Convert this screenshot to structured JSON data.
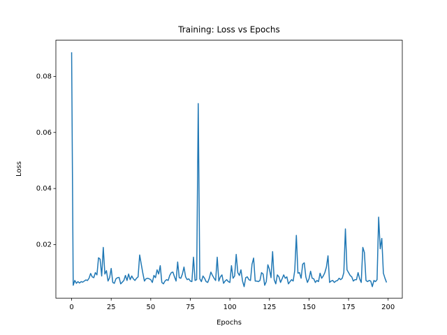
{
  "chart_data": {
    "type": "line",
    "title": "Training: Loss vs Epochs",
    "x_label": "Epochs",
    "y_label": "Loss",
    "x": [
      0,
      1,
      2,
      3,
      4,
      5,
      6,
      7,
      8,
      9,
      10,
      11,
      12,
      13,
      14,
      15,
      16,
      17,
      18,
      19,
      20,
      21,
      22,
      23,
      24,
      25,
      26,
      27,
      28,
      29,
      30,
      31,
      32,
      33,
      34,
      35,
      36,
      37,
      38,
      39,
      40,
      41,
      42,
      43,
      44,
      45,
      46,
      47,
      48,
      49,
      50,
      51,
      52,
      53,
      54,
      55,
      56,
      57,
      58,
      59,
      60,
      61,
      62,
      63,
      64,
      65,
      66,
      67,
      68,
      69,
      70,
      71,
      72,
      73,
      74,
      75,
      76,
      77,
      78,
      79,
      80,
      81,
      82,
      83,
      84,
      85,
      86,
      87,
      88,
      89,
      90,
      91,
      92,
      93,
      94,
      95,
      96,
      97,
      98,
      99,
      100,
      101,
      102,
      103,
      104,
      105,
      106,
      107,
      108,
      109,
      110,
      111,
      112,
      113,
      114,
      115,
      116,
      117,
      118,
      119,
      120,
      121,
      122,
      123,
      124,
      125,
      126,
      127,
      128,
      129,
      130,
      131,
      132,
      133,
      134,
      135,
      136,
      137,
      138,
      139,
      140,
      141,
      142,
      143,
      144,
      145,
      146,
      147,
      148,
      149,
      150,
      151,
      152,
      153,
      154,
      155,
      156,
      157,
      158,
      159,
      160,
      161,
      162,
      163,
      164,
      165,
      166,
      167,
      168,
      169,
      170,
      171,
      172,
      173,
      174,
      175,
      176,
      177,
      178,
      179,
      180,
      181,
      182,
      183,
      184,
      185,
      186,
      187,
      188,
      189,
      190,
      191,
      192,
      193,
      194,
      195,
      196,
      197,
      198,
      199
    ],
    "series": [
      {
        "name": "Loss",
        "color": "#1f77b4",
        "values": [
          0.0886,
          0.0055,
          0.0072,
          0.0062,
          0.0068,
          0.0063,
          0.0068,
          0.0066,
          0.007,
          0.0074,
          0.0072,
          0.008,
          0.0097,
          0.0085,
          0.0082,
          0.01,
          0.0092,
          0.0153,
          0.0148,
          0.0088,
          0.019,
          0.0095,
          0.0107,
          0.007,
          0.0082,
          0.0115,
          0.0065,
          0.0062,
          0.0078,
          0.0082,
          0.0083,
          0.006,
          0.0066,
          0.0072,
          0.009,
          0.0072,
          0.0095,
          0.0075,
          0.0088,
          0.0078,
          0.0072,
          0.008,
          0.0085,
          0.0163,
          0.013,
          0.0098,
          0.007,
          0.0078,
          0.008,
          0.0078,
          0.0075,
          0.0065,
          0.009,
          0.0082,
          0.011,
          0.0095,
          0.0125,
          0.0065,
          0.006,
          0.007,
          0.0075,
          0.0072,
          0.009,
          0.01,
          0.0102,
          0.0085,
          0.007,
          0.0138,
          0.0082,
          0.008,
          0.0095,
          0.012,
          0.0085,
          0.0075,
          0.0078,
          0.007,
          0.0068,
          0.0155,
          0.0072,
          0.0075,
          0.0703,
          0.0078,
          0.0068,
          0.0088,
          0.008,
          0.0068,
          0.0065,
          0.008,
          0.0102,
          0.009,
          0.008,
          0.0072,
          0.0155,
          0.007,
          0.0085,
          0.0092,
          0.0062,
          0.007,
          0.0075,
          0.0068,
          0.0065,
          0.0125,
          0.008,
          0.0088,
          0.0165,
          0.01,
          0.009,
          0.011,
          0.007,
          0.005,
          0.0082,
          0.0085,
          0.0075,
          0.0072,
          0.013,
          0.0152,
          0.007,
          0.007,
          0.0068,
          0.0072,
          0.01,
          0.0095,
          0.0055,
          0.0068,
          0.0128,
          0.0112,
          0.0082,
          0.0175,
          0.0075,
          0.006,
          0.0092,
          0.0085,
          0.0065,
          0.0078,
          0.0092,
          0.008,
          0.0085,
          0.006,
          0.0068,
          0.0075,
          0.007,
          0.0108,
          0.0233,
          0.0098,
          0.01,
          0.008,
          0.013,
          0.0135,
          0.0085,
          0.0065,
          0.0078,
          0.0105,
          0.008,
          0.0078,
          0.0065,
          0.0072,
          0.0068,
          0.0098,
          0.008,
          0.0088,
          0.01,
          0.012,
          0.016,
          0.0065,
          0.007,
          0.0072,
          0.0065,
          0.007,
          0.0072,
          0.008,
          0.0075,
          0.008,
          0.01,
          0.0256,
          0.011,
          0.01,
          0.009,
          0.0085,
          0.007,
          0.0075,
          0.0075,
          0.01,
          0.0078,
          0.0065,
          0.019,
          0.0172,
          0.0072,
          0.0068,
          0.0072,
          0.007,
          0.005,
          0.0072,
          0.0068,
          0.0075,
          0.0298,
          0.0185,
          0.0222,
          0.0098,
          0.008,
          0.0065
        ]
      }
    ],
    "xlim": [
      -9.95,
      208.95
    ],
    "xticks": [
      0,
      25,
      50,
      75,
      100,
      125,
      150,
      175,
      200
    ],
    "ylim": [
      0.0009,
      0.0929
    ],
    "yticks": [
      0.02,
      0.04,
      0.06,
      0.08
    ],
    "grid": false
  }
}
